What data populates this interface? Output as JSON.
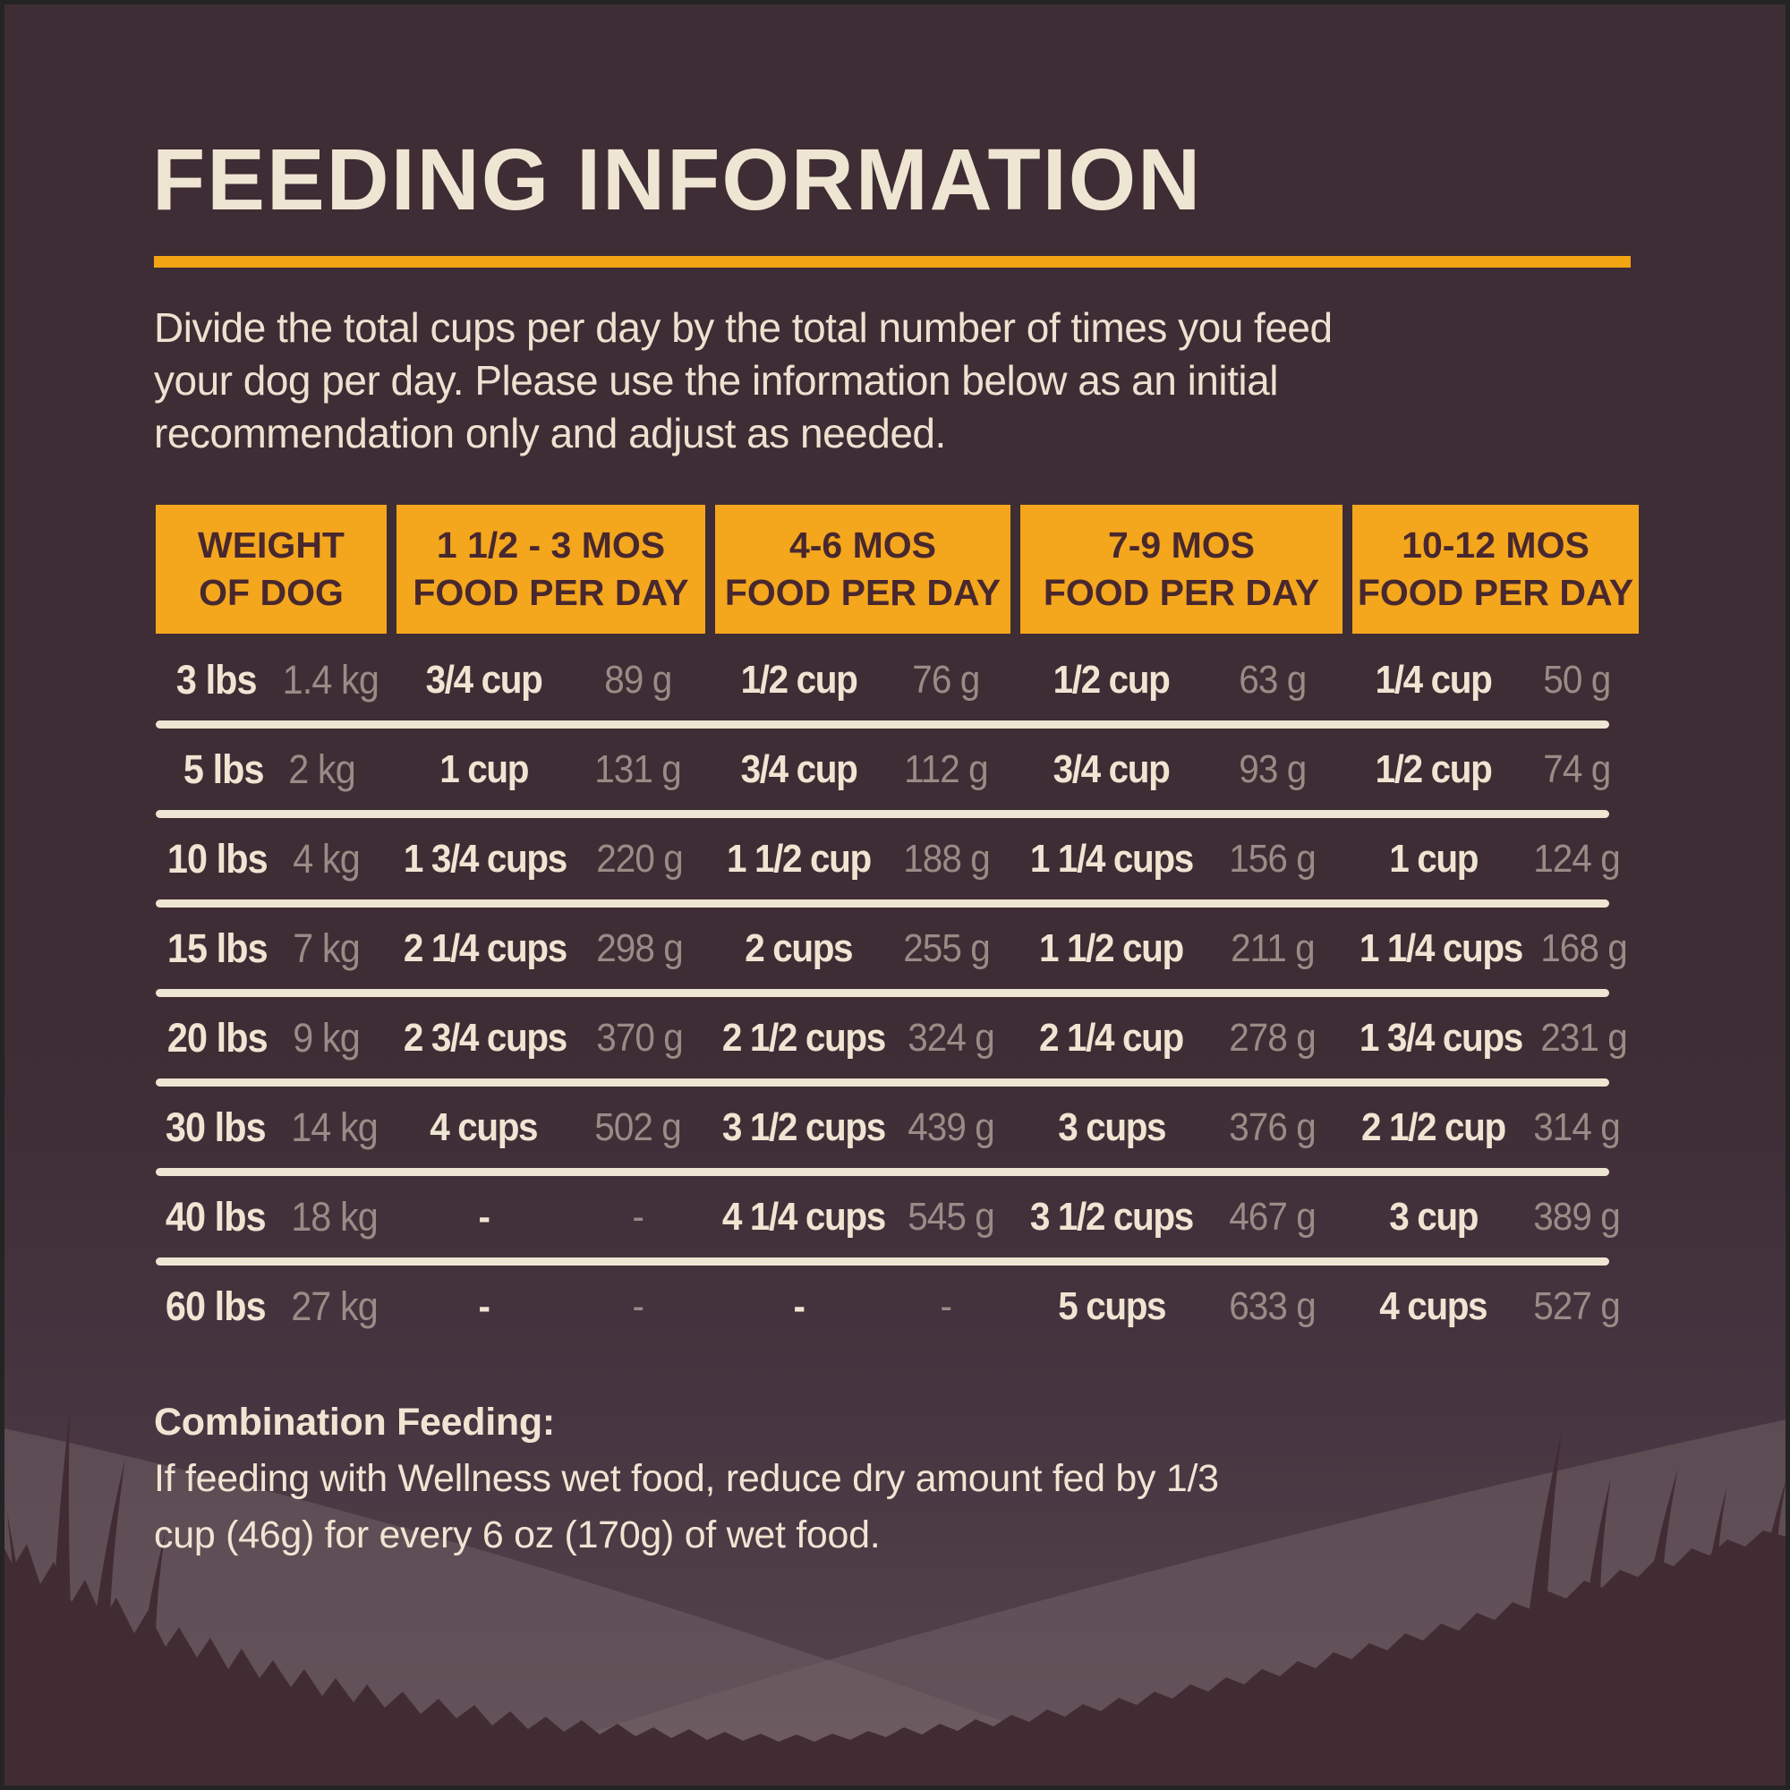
{
  "header": {
    "title": "FEEDING INFORMATION"
  },
  "intro": {
    "lines": [
      "Divide the total cups per day by the total number of times you feed",
      "your dog per day. Please use the information below as an initial",
      "recommendation only and adjust as needed."
    ]
  },
  "table": {
    "columns": [
      {
        "line1": "WEIGHT",
        "line2": "OF DOG"
      },
      {
        "line1": "1 1/2 - 3 MOS",
        "line2": "FOOD PER DAY"
      },
      {
        "line1": "4-6 MOS",
        "line2": "FOOD PER DAY"
      },
      {
        "line1": "7-9 MOS",
        "line2": "FOOD PER DAY"
      },
      {
        "line1": "10-12 MOS",
        "line2": "FOOD PER DAY"
      }
    ],
    "rows": [
      {
        "weight": "3 lbs",
        "weight_metric": "1.4 kg",
        "cells": [
          {
            "amount": "3/4 cup",
            "grams": "89 g"
          },
          {
            "amount": "1/2 cup",
            "grams": "76 g"
          },
          {
            "amount": "1/2 cup",
            "grams": "63 g"
          },
          {
            "amount": "1/4 cup",
            "grams": "50 g"
          }
        ]
      },
      {
        "weight": "5 lbs",
        "weight_metric": "2 kg",
        "cells": [
          {
            "amount": "1 cup",
            "grams": "131 g"
          },
          {
            "amount": "3/4 cup",
            "grams": "112 g"
          },
          {
            "amount": "3/4 cup",
            "grams": "93 g"
          },
          {
            "amount": "1/2 cup",
            "grams": "74 g"
          }
        ]
      },
      {
        "weight": "10 lbs",
        "weight_metric": "4 kg",
        "cells": [
          {
            "amount": "1 3/4 cups",
            "grams": "220 g"
          },
          {
            "amount": "1 1/2 cup",
            "grams": "188 g"
          },
          {
            "amount": "1 1/4 cups",
            "grams": "156 g"
          },
          {
            "amount": "1 cup",
            "grams": "124 g"
          }
        ]
      },
      {
        "weight": "15 lbs",
        "weight_metric": "7 kg",
        "cells": [
          {
            "amount": "2 1/4 cups",
            "grams": "298 g"
          },
          {
            "amount": "2 cups",
            "grams": "255 g"
          },
          {
            "amount": "1 1/2 cup",
            "grams": "211 g"
          },
          {
            "amount": "1 1/4 cups",
            "grams": "168 g"
          }
        ]
      },
      {
        "weight": "20 lbs",
        "weight_metric": "9 kg",
        "cells": [
          {
            "amount": "2 3/4 cups",
            "grams": "370 g"
          },
          {
            "amount": "2 1/2 cups",
            "grams": "324 g"
          },
          {
            "amount": "2 1/4 cup",
            "grams": "278 g"
          },
          {
            "amount": "1 3/4 cups",
            "grams": "231 g"
          }
        ]
      },
      {
        "weight": "30 lbs",
        "weight_metric": "14 kg",
        "cells": [
          {
            "amount": "4 cups",
            "grams": "502 g"
          },
          {
            "amount": "3 1/2 cups",
            "grams": "439 g"
          },
          {
            "amount": "3 cups",
            "grams": "376 g"
          },
          {
            "amount": "2 1/2 cup",
            "grams": "314 g"
          }
        ]
      },
      {
        "weight": "40 lbs",
        "weight_metric": "18 kg",
        "cells": [
          {
            "amount": "-",
            "grams": "-"
          },
          {
            "amount": "4 1/4 cups",
            "grams": "545 g"
          },
          {
            "amount": "3 1/2 cups",
            "grams": "467 g"
          },
          {
            "amount": "3 cup",
            "grams": "389 g"
          }
        ]
      },
      {
        "weight": "60 lbs",
        "weight_metric": "27 kg",
        "cells": [
          {
            "amount": "-",
            "grams": "-"
          },
          {
            "amount": "-",
            "grams": "-"
          },
          {
            "amount": "5 cups",
            "grams": "633 g"
          },
          {
            "amount": "4 cups",
            "grams": "527 g"
          }
        ]
      }
    ]
  },
  "footer": {
    "label": "Combination Feeding:",
    "line1_rest": " If feeding with Wellness wet food, reduce dry amount fed by 1/3",
    "line2": "cup (46g) for every 6 oz (170g) of wet food."
  },
  "colors": {
    "background": "#3E2D34",
    "accent_orange": "#F4A61D",
    "cream_text": "#EFE5D3",
    "muted_text": "#9A8B87",
    "header_text": "#48282E",
    "hill": "#746168",
    "foreground_grass": "#422C33"
  }
}
